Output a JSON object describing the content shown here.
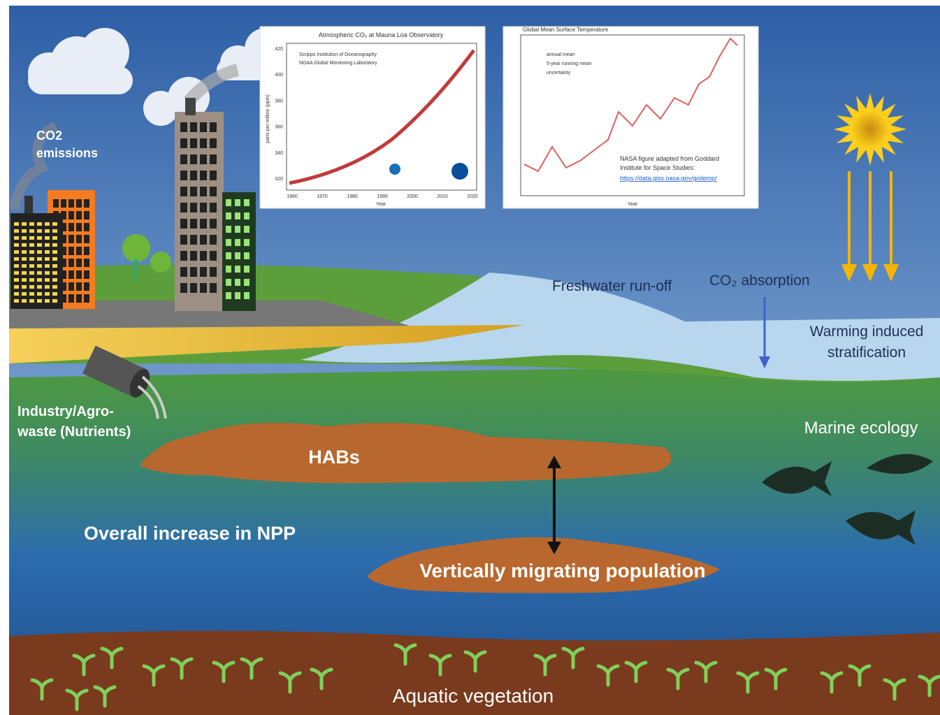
{
  "labels": {
    "co2_emissions": [
      "CO2",
      "emissions"
    ],
    "freshwater_runoff": "Freshwater run-off",
    "co2_absorption": "CO₂ absorption",
    "stratification": [
      "Warming induced",
      "stratification"
    ],
    "industry_waste": [
      "Industry/Agro-",
      "waste (Nutrients)"
    ],
    "habs": "HABs",
    "marine_ecology": "Marine ecology",
    "npp": "Overall increase in NPP",
    "migrating": "Vertically migrating population",
    "vegetation": "Aquatic vegetation"
  },
  "co2_chart": {
    "title": "Atmospheric CO₂ at Mauna Loa Observatory",
    "sources": [
      "Scripps Institution of Oceanography",
      "NOAA Global Monitoring Laboratory"
    ],
    "y_label": "parts per million (ppm)",
    "x_label": "Year",
    "xticks": [
      "1960",
      "1970",
      "1980",
      "1990",
      "2000",
      "2010",
      "2020"
    ],
    "yticks": [
      "320",
      "340",
      "360",
      "380",
      "400",
      "420"
    ]
  },
  "temp_chart": {
    "title": "Global Mean Surface Temperature",
    "legend": [
      "annual mean",
      "5-year running mean",
      "uncertainty"
    ],
    "credit": [
      "NASA figure adapted from Goddard",
      "Institute for Space Studies:"
    ],
    "link": "https://data.giss.nasa.gov/gistemp/",
    "x_label": "Year"
  }
}
